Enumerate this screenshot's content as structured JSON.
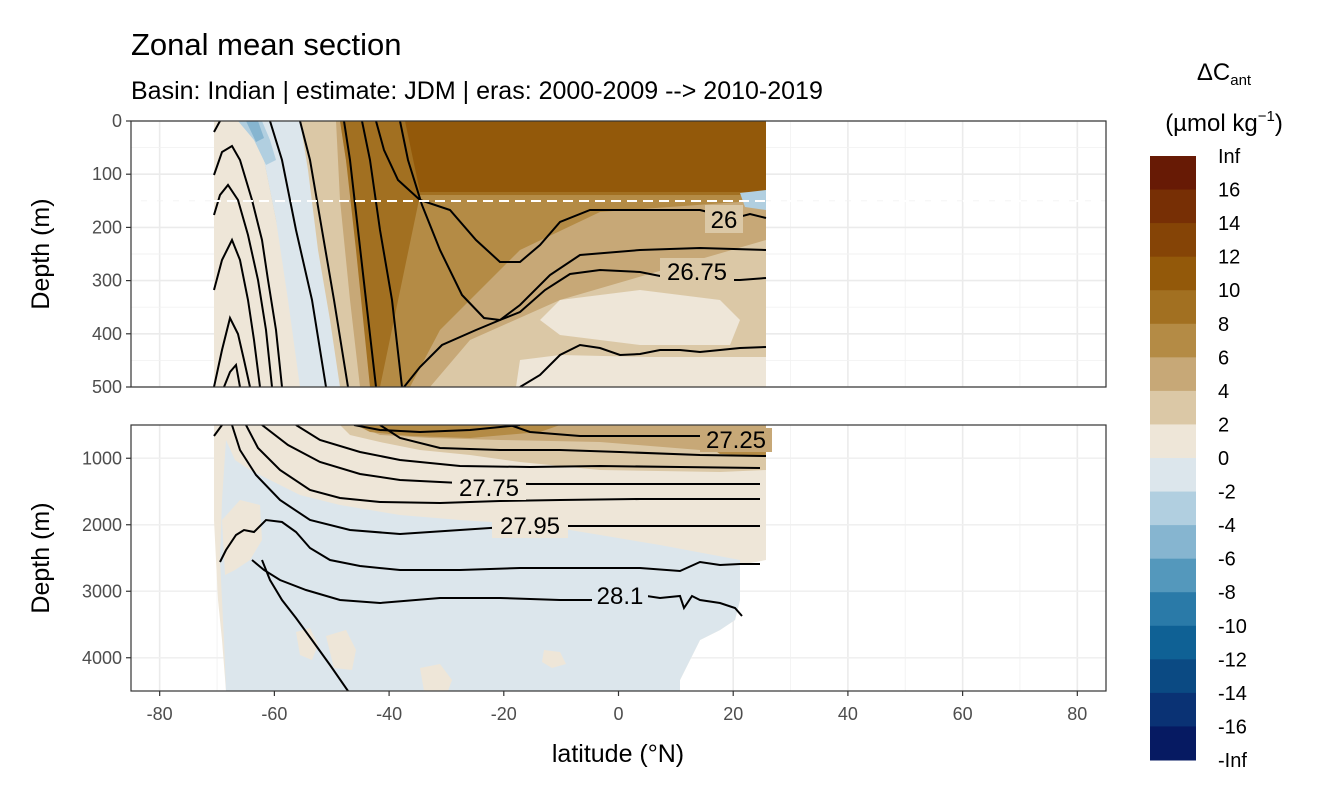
{
  "title": "Zonal mean section",
  "subtitle": "Basin: Indian | estimate: JDM  | eras: 2000-2009 --> 2010-2019",
  "chart_data": {
    "type": "contour-section",
    "xlabel": "latitude (°N)",
    "ylabel": "Depth (m)",
    "x_ticks": [
      "-80",
      "-60",
      "-40",
      "-20",
      "0",
      "20",
      "40",
      "60",
      "80"
    ],
    "xlim": [
      -85,
      85
    ],
    "data_lat_range": [
      -70,
      25
    ],
    "panels": [
      {
        "name": "upper",
        "ylim": [
          0,
          500
        ],
        "y_ticks": [
          "0",
          "100",
          "200",
          "300",
          "400",
          "500"
        ],
        "reference_depth": 150
      },
      {
        "name": "lower",
        "ylim": [
          500,
          4500
        ],
        "y_ticks": [
          "1000",
          "2000",
          "3000",
          "4000"
        ]
      }
    ],
    "legend": {
      "title_base": "ΔC",
      "title_subscript": "ant",
      "unit_prefix": "(µmol kg",
      "unit_exponent": "−1",
      "unit_suffix": ")",
      "breaks": [
        "Inf",
        "16",
        "14",
        "12",
        "10",
        "8",
        "6",
        "4",
        "2",
        "0",
        "-2",
        "-4",
        "-6",
        "-8",
        "-10",
        "-12",
        "-14",
        "-16",
        "-Inf"
      ],
      "colors": [
        "#671A05",
        "#772F05",
        "#854406",
        "#93590A",
        "#A27021",
        "#B48B45",
        "#C7A877",
        "#DBC8A6",
        "#EEE6D8",
        "#DCE6EC",
        "#B1CFE0",
        "#86B5D0",
        "#5498BC",
        "#2A7AA8",
        "#0F6195",
        "#0B4A83",
        "#0A3274",
        "#061A62"
      ]
    },
    "isopycnal_labels": [
      {
        "text": "26",
        "lat": 18,
        "depth": 185
      },
      {
        "text": "26.75",
        "lat": 14,
        "depth": 280
      },
      {
        "text": "27.25",
        "lat": 20,
        "depth": 720
      },
      {
        "text": "27.75",
        "lat": -23,
        "depth": 1450
      },
      {
        "text": "27.95",
        "lat": -9,
        "depth": 2000
      },
      {
        "text": "28.1",
        "lat": 4,
        "depth": 3080
      }
    ]
  }
}
